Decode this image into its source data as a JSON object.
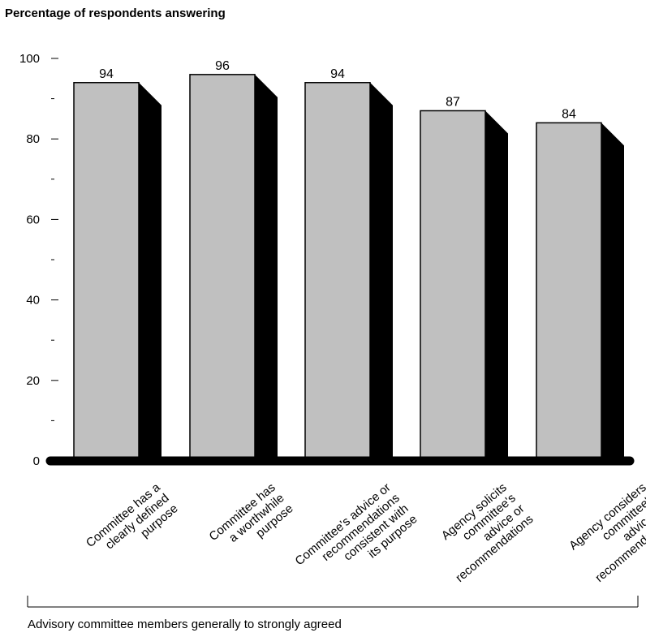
{
  "chart_data": {
    "type": "bar",
    "title": "Percentage of respondents answering",
    "categories": [
      [
        "Committee has a",
        "clearly defined",
        "purpose"
      ],
      [
        "Committee has",
        "a worthwhile",
        "purpose"
      ],
      [
        "Committee's advice or",
        "recommendations",
        "consistent with",
        "its purpose"
      ],
      [
        "Agency solicits",
        "committee's",
        "advice or",
        "recommendations"
      ],
      [
        "Agency considers",
        "committee's",
        "advice or",
        "recommendations"
      ]
    ],
    "values": [
      94,
      96,
      94,
      87,
      84
    ],
    "ylim": [
      0,
      100
    ],
    "yticks": [
      0,
      20,
      40,
      60,
      80,
      100
    ],
    "bar_color": "#c0c0c0",
    "shadow_color": "#000000",
    "group_label": "Advisory committee members generally to strongly agreed"
  }
}
